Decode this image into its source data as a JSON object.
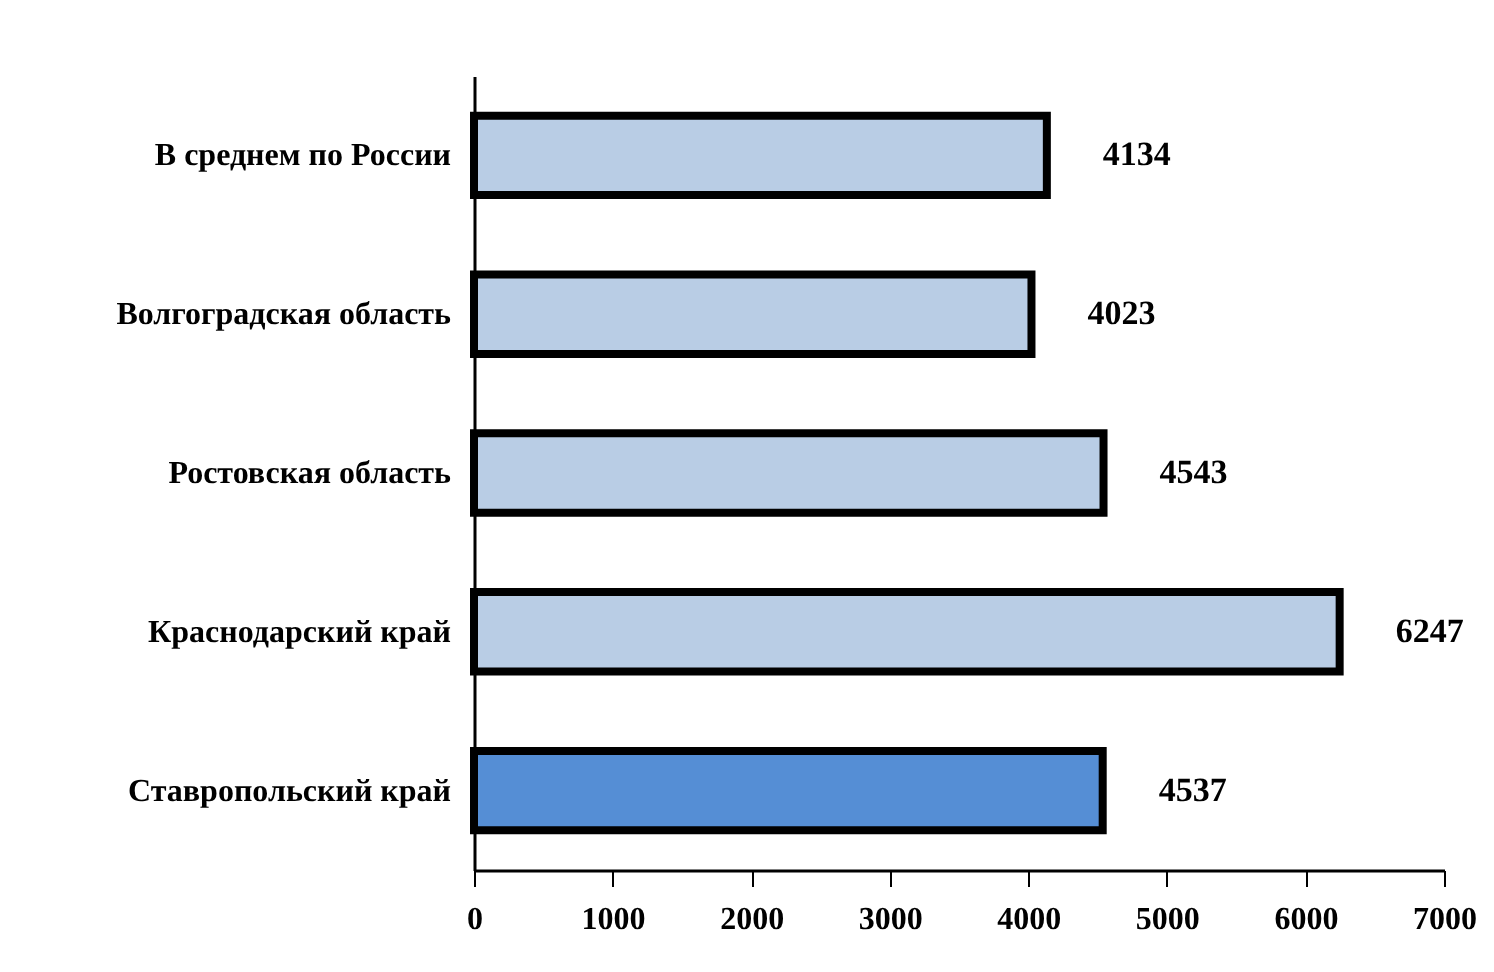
{
  "chart_data": {
    "type": "bar",
    "orientation": "horizontal",
    "categories": [
      "В среднем по России",
      "Волгоградская  область",
      "Ростовская  область",
      "Краснодарский  край",
      "Ставропольский  край"
    ],
    "values": [
      4134,
      4023,
      4543,
      6247,
      4537
    ],
    "colors": [
      "#b9cde5",
      "#b9cde5",
      "#b9cde5",
      "#b9cde5",
      "#558ed5"
    ],
    "xlim": [
      0,
      7000
    ],
    "xticks": [
      0,
      1000,
      2000,
      3000,
      4000,
      5000,
      6000,
      7000
    ],
    "data_labels": true,
    "grid": false
  }
}
